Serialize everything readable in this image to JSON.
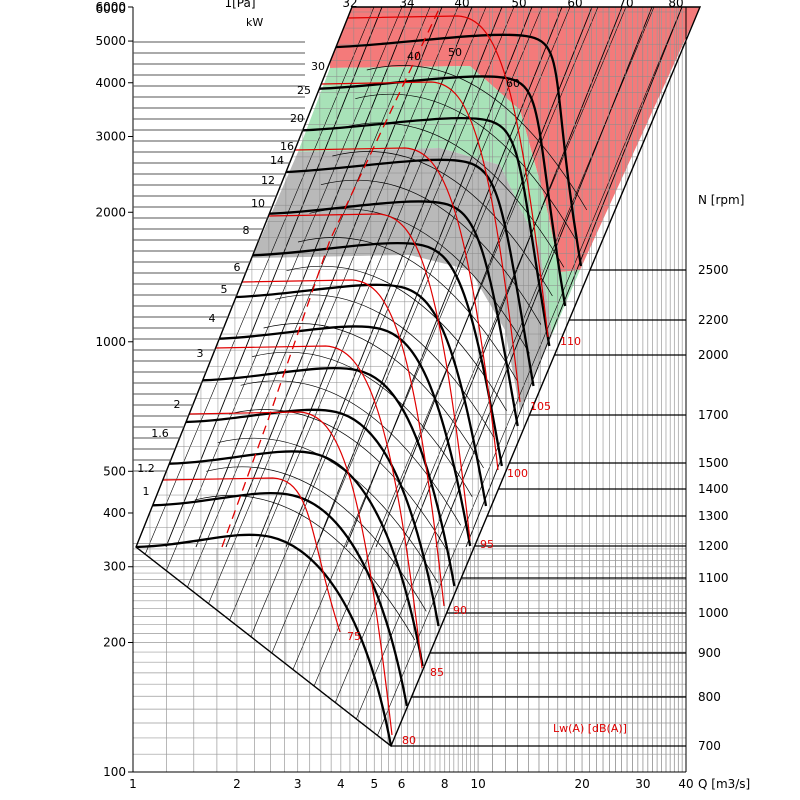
{
  "chart_data": {
    "type": "line",
    "x_axis": {
      "label": "Q [m3/s]",
      "scale": "log",
      "range": [
        1,
        40
      ],
      "ticks": [
        "1",
        "2",
        "3",
        "4",
        "5",
        "6",
        "8",
        "10",
        "20",
        "30",
        "40"
      ]
    },
    "y_axis": {
      "label": "",
      "scale": "log",
      "range": [
        100,
        6000
      ],
      "ticks": [
        "100",
        "200",
        "300",
        "400",
        "500",
        "1000",
        "2000",
        "3000",
        "4000",
        "5000",
        "6000"
      ]
    },
    "power_label": "kW",
    "power_lines": [
      "1",
      "1.2",
      "1.6",
      "2",
      "3",
      "4",
      "5",
      "6",
      "8",
      "10",
      "12",
      "14",
      "16",
      "20",
      "25",
      "30",
      "40",
      "50",
      "60"
    ],
    "speed_axis": {
      "label": "N [rpm]",
      "ticks": [
        "700",
        "800",
        "900",
        "1000",
        "1100",
        "1200",
        "1300",
        "1400",
        "1500",
        "1700",
        "2000",
        "2200",
        "2500"
      ]
    },
    "noise_label": "Lw(A)  [dB(A)]",
    "noise_lines": [
      "75",
      "80",
      "85",
      "90",
      "95",
      "100",
      "105",
      "110"
    ],
    "top_edge_labels": [
      "6000",
      "1[Pa]",
      "32",
      "34",
      "40",
      "50",
      "60",
      "70",
      "80"
    ],
    "zones": [
      {
        "fill": "#f47a7a",
        "meaning": "above max speed"
      },
      {
        "fill": "#a8e2b8",
        "meaning": "speed 2200-2500 rpm"
      },
      {
        "fill": "#b9b9b9",
        "meaning": "speed 2000-2200 rpm"
      }
    ],
    "fan_curves_rpm": [
      700,
      800,
      900,
      1000,
      1100,
      1200,
      1300,
      1400,
      1500,
      1700,
      2000,
      2200,
      2500
    ],
    "grid": true
  }
}
